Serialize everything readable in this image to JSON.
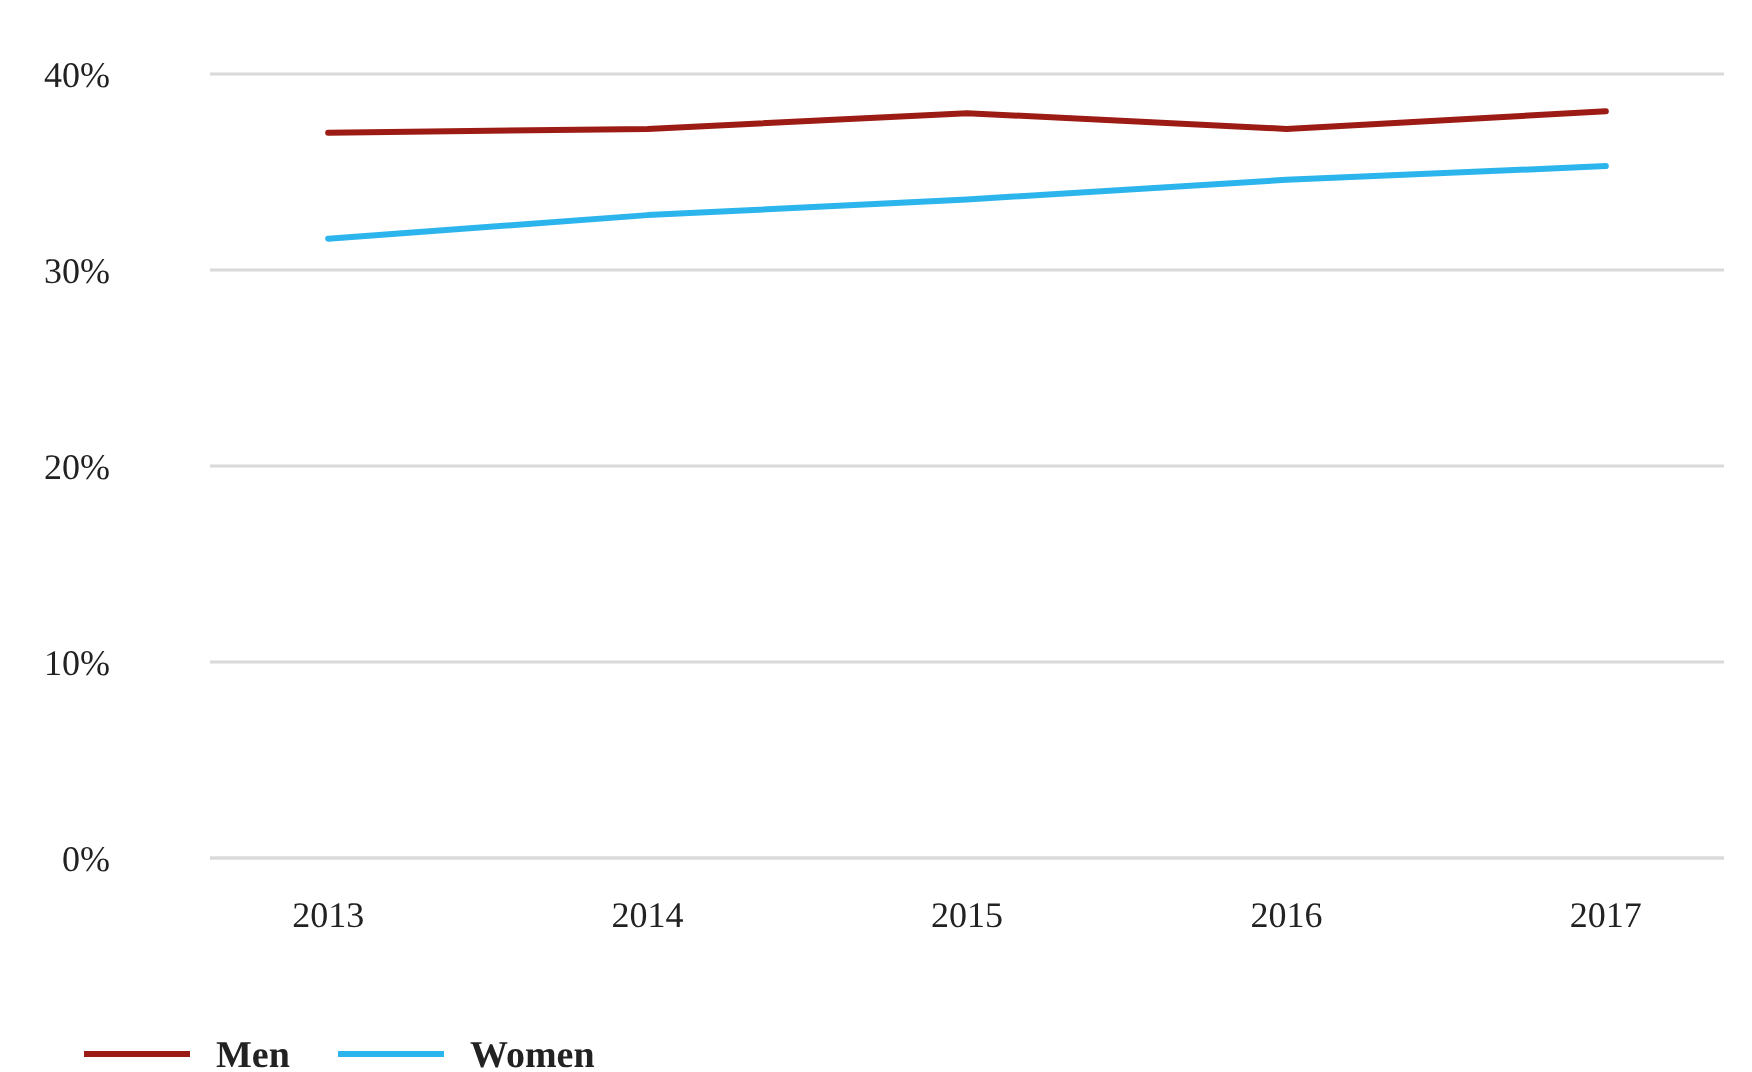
{
  "chart_data": {
    "type": "line",
    "categories": [
      "2013",
      "2014",
      "2015",
      "2016",
      "2017"
    ],
    "series": [
      {
        "name": "Men",
        "color": "#9c1b14",
        "values": [
          37.0,
          37.2,
          38.0,
          37.2,
          38.1
        ]
      },
      {
        "name": "Women",
        "color": "#2cb4ec",
        "values": [
          31.6,
          32.8,
          33.6,
          34.6,
          35.3
        ]
      }
    ],
    "ylim": [
      0,
      40
    ],
    "yticks": [
      {
        "value": 0,
        "label": "0%"
      },
      {
        "value": 10,
        "label": "10%"
      },
      {
        "value": 20,
        "label": "20%"
      },
      {
        "value": 30,
        "label": "30%"
      },
      {
        "value": 40,
        "label": "40%"
      }
    ],
    "grid": "y",
    "legend": "bottom left",
    "marker": "none",
    "line_style": "solid"
  }
}
